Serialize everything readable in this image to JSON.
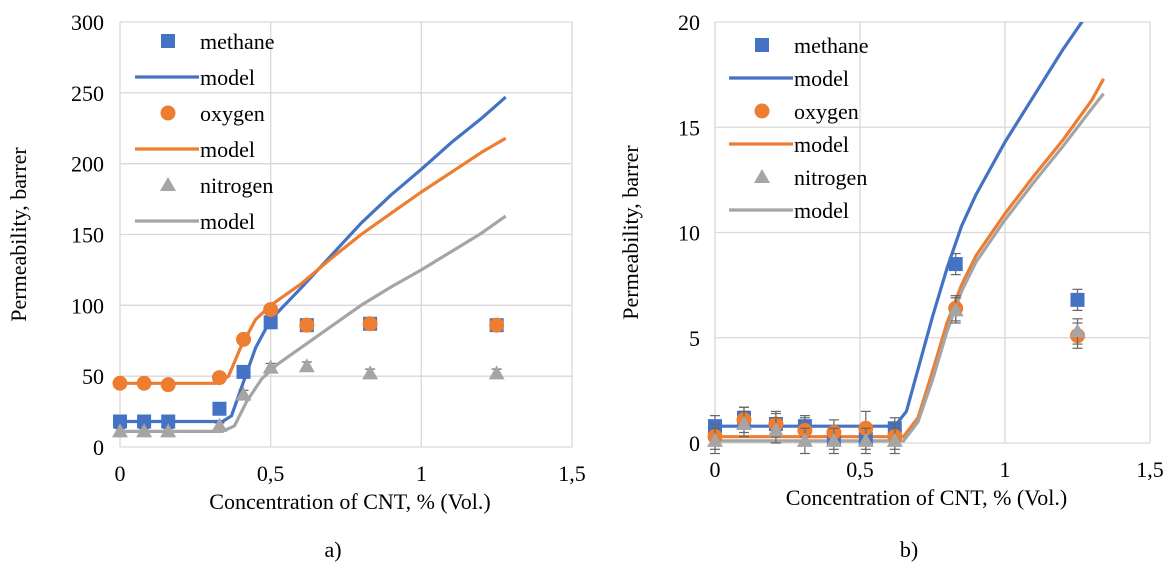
{
  "chart_data": [
    {
      "type": "scatter",
      "caption": "a)",
      "xlabel": "Concentration of CNT, % (Vol.)",
      "ylabel": "Permeability, barrer",
      "xlim": [
        0,
        1.5
      ],
      "ylim": [
        0,
        300
      ],
      "xticks": [
        0,
        0.5,
        1,
        1.5
      ],
      "xtick_labels": [
        "0",
        "0,5",
        "1",
        "1,5"
      ],
      "yticks": [
        0,
        50,
        100,
        150,
        200,
        250,
        300
      ],
      "ytick_labels": [
        "0",
        "50",
        "100",
        "150",
        "200",
        "250",
        "300"
      ],
      "grid": true,
      "legend_position": "top-left",
      "series": [
        {
          "name": "methane",
          "kind": "points",
          "marker": "square",
          "color": "#4472c4",
          "x": [
            0,
            0.08,
            0.16,
            0.33,
            0.41,
            0.5,
            0.62,
            0.83,
            1.25
          ],
          "y": [
            18,
            18,
            18,
            27,
            53,
            88,
            86,
            87,
            86
          ],
          "err": [
            2,
            2,
            2,
            3,
            3,
            3,
            3,
            3,
            3
          ]
        },
        {
          "name": "model",
          "kind": "line",
          "color": "#4472c4",
          "x": [
            0,
            0.34,
            0.37,
            0.4,
            0.45,
            0.5,
            0.6,
            0.7,
            0.8,
            0.9,
            1.0,
            1.1,
            1.2,
            1.28
          ],
          "y": [
            18,
            18,
            22,
            40,
            70,
            90,
            112,
            135,
            158,
            178,
            196,
            215,
            232,
            247
          ]
        },
        {
          "name": "oxygen",
          "kind": "points",
          "marker": "circle",
          "color": "#ed7d31",
          "x": [
            0,
            0.08,
            0.16,
            0.33,
            0.41,
            0.5,
            0.62,
            0.83,
            1.25
          ],
          "y": [
            45,
            45,
            44,
            49,
            76,
            97,
            86,
            87,
            86
          ],
          "err": [
            2,
            2,
            2,
            3,
            3,
            3,
            3,
            3,
            3
          ]
        },
        {
          "name": "model",
          "kind": "line",
          "color": "#ed7d31",
          "x": [
            0,
            0.32,
            0.36,
            0.4,
            0.45,
            0.5,
            0.6,
            0.7,
            0.8,
            0.9,
            1.0,
            1.1,
            1.2,
            1.28
          ],
          "y": [
            45,
            45,
            50,
            70,
            90,
            100,
            115,
            133,
            150,
            165,
            180,
            194,
            208,
            218
          ]
        },
        {
          "name": "nitrogen",
          "kind": "points",
          "marker": "triangle",
          "color": "#a5a5a5",
          "x": [
            0,
            0.08,
            0.16,
            0.33,
            0.41,
            0.5,
            0.62,
            0.83,
            1.25
          ],
          "y": [
            11,
            11,
            11,
            15,
            37,
            56,
            57,
            52,
            52
          ],
          "err": [
            2,
            2,
            2,
            2,
            3,
            3,
            3,
            3,
            3
          ]
        },
        {
          "name": "model",
          "kind": "line",
          "color": "#a5a5a5",
          "x": [
            0,
            0.34,
            0.38,
            0.42,
            0.47,
            0.52,
            0.6,
            0.7,
            0.8,
            0.9,
            1.0,
            1.1,
            1.2,
            1.28
          ],
          "y": [
            11,
            11,
            15,
            32,
            48,
            58,
            70,
            85,
            100,
            113,
            125,
            138,
            151,
            163
          ]
        }
      ]
    },
    {
      "type": "scatter",
      "caption": "b)",
      "xlabel": "Concentration of CNT, % (Vol.)",
      "ylabel": "Permeability, barrer",
      "xlim": [
        0,
        1.5
      ],
      "ylim": [
        0,
        20
      ],
      "xticks": [
        0,
        0.5,
        1,
        1.5
      ],
      "xtick_labels": [
        "0",
        "0,5",
        "1",
        "1,5"
      ],
      "yticks": [
        0,
        5,
        10,
        15,
        20
      ],
      "ytick_labels": [
        "0",
        "5",
        "10",
        "15",
        "20"
      ],
      "grid": true,
      "legend_position": "top-left",
      "series": [
        {
          "name": "methane",
          "kind": "points",
          "marker": "square",
          "color": "#4472c4",
          "x": [
            0,
            0.1,
            0.21,
            0.31,
            0.41,
            0.52,
            0.62,
            0.83,
            1.25
          ],
          "y": [
            0.8,
            1.2,
            0.9,
            0.8,
            0.2,
            0.2,
            0.7,
            8.5,
            6.8
          ],
          "err": [
            0.5,
            0.5,
            0.5,
            0.5,
            0.5,
            0.5,
            0.5,
            0.5,
            0.5
          ]
        },
        {
          "name": "model",
          "kind": "line",
          "color": "#4472c4",
          "x": [
            0,
            0.62,
            0.66,
            0.7,
            0.75,
            0.8,
            0.85,
            0.9,
            1.0,
            1.1,
            1.2,
            1.28
          ],
          "y": [
            0.8,
            0.8,
            1.5,
            3.5,
            6.0,
            8.3,
            10.3,
            11.8,
            14.3,
            16.5,
            18.7,
            20.3
          ]
        },
        {
          "name": "oxygen",
          "kind": "points",
          "marker": "circle",
          "color": "#ed7d31",
          "x": [
            0,
            0.1,
            0.21,
            0.31,
            0.41,
            0.52,
            0.62,
            0.83,
            1.25
          ],
          "y": [
            0.3,
            1.1,
            0.9,
            0.6,
            0.5,
            0.7,
            0.3,
            6.4,
            5.1
          ],
          "err": [
            0.6,
            0.6,
            0.6,
            0.6,
            0.6,
            0.8,
            0.6,
            0.6,
            0.6
          ]
        },
        {
          "name": "model",
          "kind": "line",
          "color": "#ed7d31",
          "x": [
            0,
            0.65,
            0.7,
            0.75,
            0.8,
            0.85,
            0.9,
            1.0,
            1.1,
            1.2,
            1.3,
            1.34
          ],
          "y": [
            0.3,
            0.3,
            1.2,
            3.4,
            5.7,
            7.5,
            8.9,
            10.9,
            12.7,
            14.4,
            16.3,
            17.3
          ]
        },
        {
          "name": "nitrogen",
          "kind": "points",
          "marker": "triangle",
          "color": "#a5a5a5",
          "x": [
            0,
            0.1,
            0.21,
            0.31,
            0.41,
            0.52,
            0.62,
            0.83,
            1.25
          ],
          "y": [
            0.1,
            0.9,
            0.6,
            0.1,
            0.1,
            0.1,
            0.1,
            6.3,
            5.3
          ],
          "err": [
            0.6,
            0.6,
            0.6,
            0.6,
            0.6,
            0.6,
            0.6,
            0.6,
            0.6
          ]
        },
        {
          "name": "model",
          "kind": "line",
          "color": "#a5a5a5",
          "x": [
            0,
            0.65,
            0.7,
            0.75,
            0.8,
            0.85,
            0.9,
            1.0,
            1.1,
            1.2,
            1.3,
            1.34
          ],
          "y": [
            0.1,
            0.1,
            1.0,
            3.0,
            5.3,
            7.2,
            8.6,
            10.6,
            12.4,
            14.1,
            15.9,
            16.6
          ]
        }
      ]
    }
  ]
}
